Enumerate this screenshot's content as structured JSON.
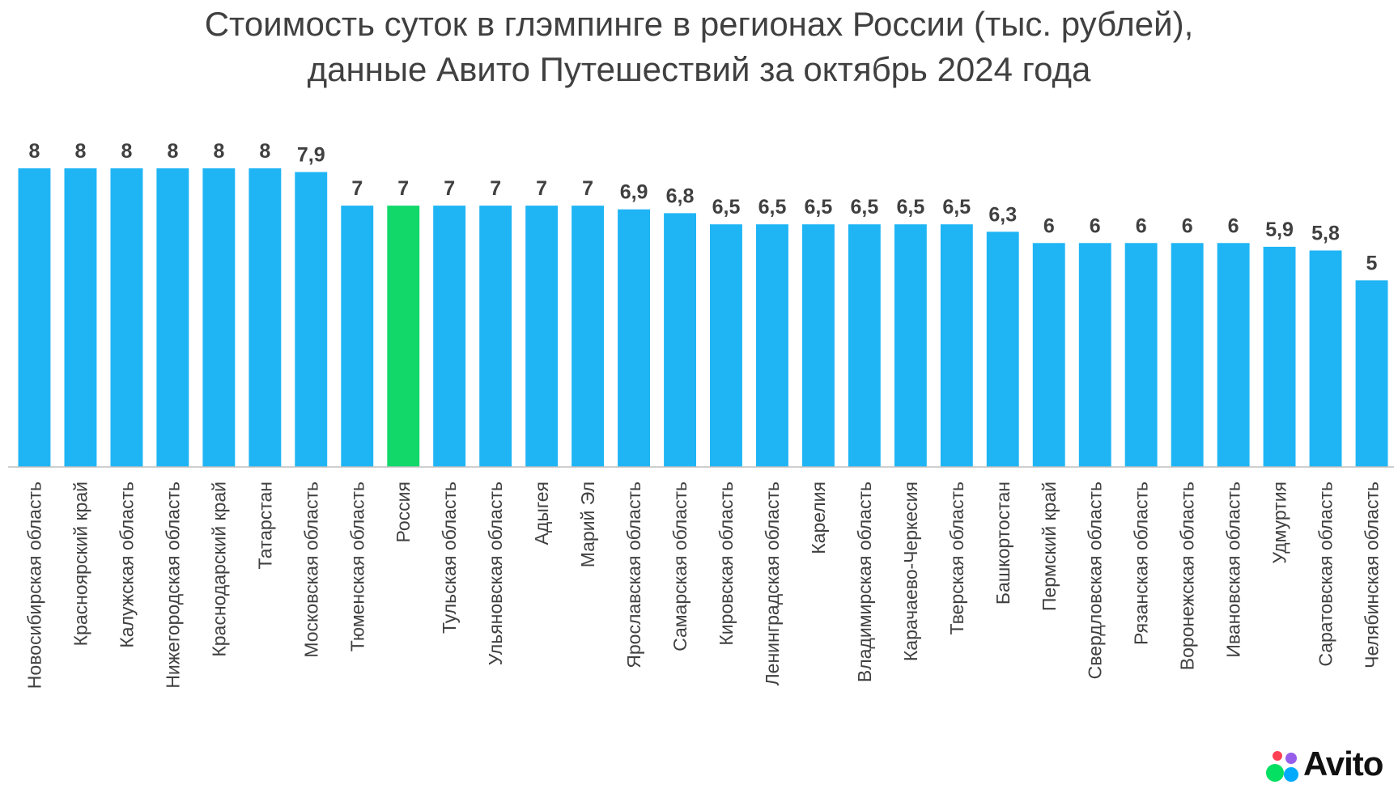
{
  "chart_data": {
    "type": "bar",
    "title": "Стоимость суток в глэмпинге в регионах России (тыс. рублей),",
    "subtitle": "данные Авито Путешествий за октябрь 2024 года",
    "categories": [
      "Новосибирская область",
      "Красноярский край",
      "Калужская область",
      "Нижегородская область",
      "Краснодарский край",
      "Татарстан",
      "Московская область",
      "Тюменская область",
      "Россия",
      "Тульская область",
      "Ульяновская область",
      "Адыгея",
      "Марий Эл",
      "Ярославская область",
      "Самарская область",
      "Кировская область",
      "Ленинградская область",
      "Карелия",
      "Владимирская область",
      "Карачаево-Черкесия",
      "Тверская область",
      "Башкортостан",
      "Пермский край",
      "Свердловская область",
      "Рязанская область",
      "Воронежская область",
      "Ивановская область",
      "Удмуртия",
      "Саратовская область",
      "Челябинская область"
    ],
    "values": [
      8,
      8,
      8,
      8,
      8,
      8,
      7.9,
      7,
      7,
      7,
      7,
      7,
      7,
      6.9,
      6.8,
      6.5,
      6.5,
      6.5,
      6.5,
      6.5,
      6.5,
      6.3,
      6,
      6,
      6,
      6,
      6,
      5.9,
      5.8,
      5
    ],
    "value_labels": [
      "8",
      "8",
      "8",
      "8",
      "8",
      "8",
      "7,9",
      "7",
      "7",
      "7",
      "7",
      "7",
      "7",
      "6,9",
      "6,8",
      "6,5",
      "6,5",
      "6,5",
      "6,5",
      "6,5",
      "6,5",
      "6,3",
      "6",
      "6",
      "6",
      "6",
      "6",
      "5,9",
      "5,8",
      "5"
    ],
    "highlight_category": "Россия",
    "colors": {
      "bar": "#1FB5F5",
      "highlight": "#12D86A",
      "text": "#404040",
      "axis": "#BFBFBF"
    },
    "ylim": [
      0,
      8
    ],
    "grid": false,
    "legend": "none",
    "xlabel": "",
    "ylabel": ""
  },
  "brand": {
    "logo_text": "Avito",
    "logo_dot_colors": [
      "#04E061",
      "#965EEB",
      "#FF4053",
      "#0AF"
    ]
  }
}
